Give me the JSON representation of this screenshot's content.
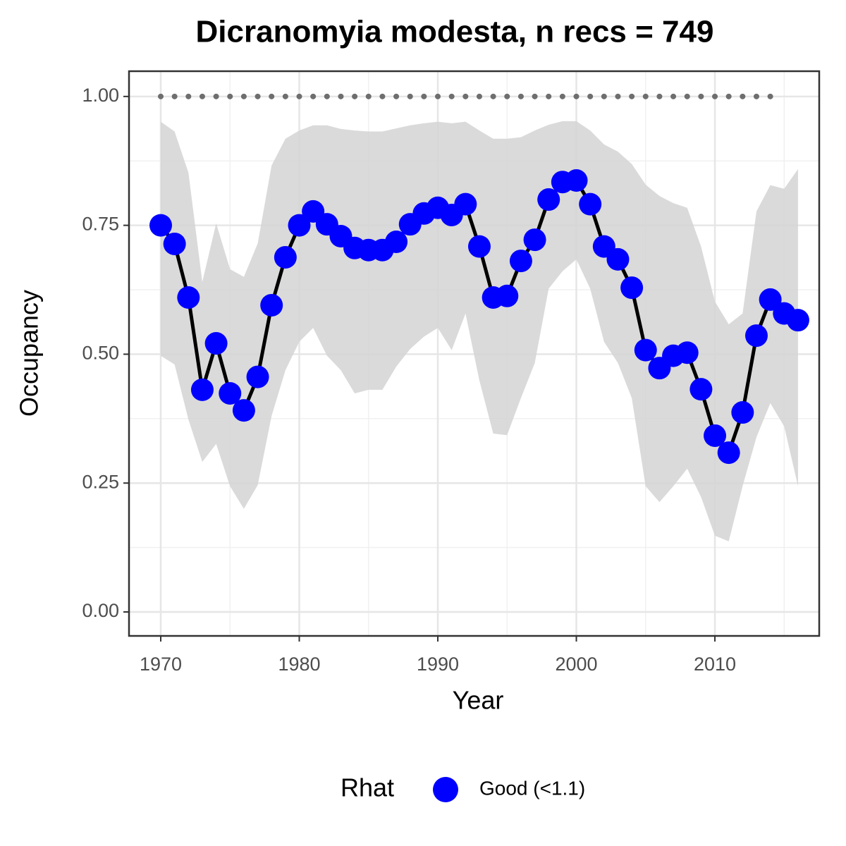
{
  "chart_data": {
    "type": "line",
    "title": "Dicranomyia modesta, n recs = 749",
    "x_label": "Year",
    "y_label": "Occupancy",
    "x": [
      1970,
      1971,
      1972,
      1973,
      1974,
      1975,
      1976,
      1977,
      1978,
      1979,
      1980,
      1981,
      1982,
      1983,
      1984,
      1985,
      1986,
      1987,
      1988,
      1989,
      1990,
      1991,
      1992,
      1993,
      1994,
      1995,
      1996,
      1997,
      1998,
      1999,
      2000,
      2001,
      2002,
      2003,
      2004,
      2005,
      2006,
      2007,
      2008,
      2009,
      2010,
      2011,
      2012,
      2013,
      2014,
      2015,
      2016
    ],
    "series": [
      {
        "name": "Good (<1.1)",
        "color": "#0000ff",
        "line_color": "#000000",
        "values": [
          0.75,
          0.714,
          0.61,
          0.431,
          0.521,
          0.424,
          0.391,
          0.456,
          0.595,
          0.688,
          0.75,
          0.777,
          0.752,
          0.729,
          0.706,
          0.702,
          0.702,
          0.718,
          0.752,
          0.773,
          0.784,
          0.77,
          0.791,
          0.709,
          0.61,
          0.613,
          0.681,
          0.722,
          0.8,
          0.834,
          0.837,
          0.791,
          0.709,
          0.684,
          0.629,
          0.508,
          0.473,
          0.497,
          0.503,
          0.432,
          0.342,
          0.309,
          0.387,
          0.536,
          0.606,
          0.579,
          0.566
        ]
      }
    ],
    "ribbon_color": "#d4d4d4",
    "ribbon_upper": [
      0.951,
      0.932,
      0.852,
      0.64,
      0.754,
      0.665,
      0.65,
      0.715,
      0.866,
      0.918,
      0.934,
      0.944,
      0.944,
      0.937,
      0.934,
      0.932,
      0.932,
      0.938,
      0.944,
      0.948,
      0.951,
      0.948,
      0.951,
      0.934,
      0.918,
      0.918,
      0.921,
      0.934,
      0.945,
      0.952,
      0.952,
      0.934,
      0.907,
      0.893,
      0.869,
      0.829,
      0.807,
      0.793,
      0.784,
      0.709,
      0.602,
      0.558,
      0.579,
      0.777,
      0.828,
      0.821,
      0.859
    ],
    "ribbon_lower": [
      0.497,
      0.48,
      0.373,
      0.291,
      0.326,
      0.244,
      0.2,
      0.246,
      0.38,
      0.469,
      0.524,
      0.551,
      0.497,
      0.469,
      0.424,
      0.431,
      0.431,
      0.476,
      0.51,
      0.534,
      0.551,
      0.508,
      0.579,
      0.449,
      0.346,
      0.343,
      0.415,
      0.483,
      0.627,
      0.661,
      0.684,
      0.627,
      0.524,
      0.483,
      0.415,
      0.244,
      0.213,
      0.244,
      0.278,
      0.223,
      0.148,
      0.137,
      0.244,
      0.339,
      0.405,
      0.36,
      0.244
    ],
    "reference_line": {
      "y": 1,
      "x": [
        1970,
        2015
      ],
      "color": "#6e6e6e"
    },
    "xlim": [
      1967.71,
      2017.53
    ],
    "ylim": [
      -0.0465,
      1.049
    ],
    "xticks": [
      1970,
      1980,
      1990,
      2000,
      2010
    ],
    "yticks": [
      {
        "value": 0,
        "label": "0.00"
      },
      {
        "value": 0.25,
        "label": "0.25"
      },
      {
        "value": 0.5,
        "label": "0.50"
      },
      {
        "value": 0.75,
        "label": "0.75"
      },
      {
        "value": 1,
        "label": "1.00"
      }
    ],
    "grid": true,
    "legend_title": "Rhat",
    "legend_position": "bottom"
  }
}
